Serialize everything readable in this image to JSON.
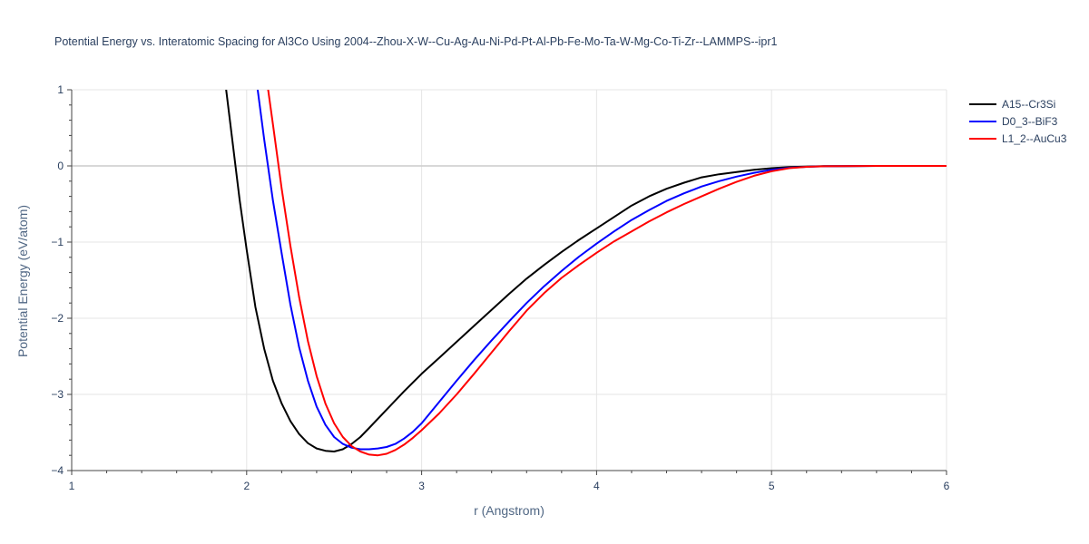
{
  "chart_data": {
    "type": "line",
    "title": "Potential Energy vs. Interatomic Spacing for Al3Co Using 2004--Zhou-X-W--Cu-Ag-Au-Ni-Pd-Pt-Al-Pb-Fe-Mo-Ta-W-Mg-Co-Ti-Zr--LAMMPS--ipr1",
    "xlabel": "r (Angstrom)",
    "ylabel": "Potential Energy (eV/atom)",
    "xlim": [
      1,
      6
    ],
    "ylim": [
      -4,
      1
    ],
    "xticks": [
      1,
      2,
      3,
      4,
      5,
      6
    ],
    "yticks": [
      -4,
      -3,
      -2,
      -1,
      0,
      1
    ],
    "ytick_labels": [
      "−4",
      "−3",
      "−2",
      "−1",
      "0",
      "1"
    ],
    "grid": true,
    "legend_position": "top-right",
    "series": [
      {
        "name": "A15--Cr3Si",
        "color": "#000000",
        "x": [
          1.88,
          1.92,
          1.96,
          2.0,
          2.05,
          2.1,
          2.15,
          2.2,
          2.25,
          2.3,
          2.35,
          2.4,
          2.45,
          2.5,
          2.55,
          2.6,
          2.65,
          2.7,
          2.8,
          2.9,
          3.0,
          3.1,
          3.2,
          3.3,
          3.4,
          3.5,
          3.6,
          3.7,
          3.8,
          3.9,
          4.0,
          4.1,
          4.2,
          4.3,
          4.4,
          4.5,
          4.6,
          4.7,
          4.8,
          4.9,
          5.0,
          5.1,
          5.2,
          5.3,
          5.4,
          5.5,
          5.6,
          5.8,
          6.0
        ],
        "y": [
          1.05,
          0.3,
          -0.45,
          -1.1,
          -1.85,
          -2.4,
          -2.82,
          -3.12,
          -3.35,
          -3.52,
          -3.64,
          -3.71,
          -3.74,
          -3.75,
          -3.72,
          -3.65,
          -3.56,
          -3.44,
          -3.2,
          -2.96,
          -2.73,
          -2.52,
          -2.31,
          -2.1,
          -1.89,
          -1.68,
          -1.48,
          -1.3,
          -1.13,
          -0.97,
          -0.82,
          -0.67,
          -0.52,
          -0.4,
          -0.3,
          -0.22,
          -0.15,
          -0.11,
          -0.08,
          -0.05,
          -0.03,
          -0.015,
          -0.008,
          -0.004,
          -0.002,
          -0.001,
          0.0,
          0.0,
          0.0
        ]
      },
      {
        "name": "D0_3--BiF3",
        "color": "#0000ff",
        "x": [
          2.06,
          2.1,
          2.15,
          2.2,
          2.25,
          2.3,
          2.35,
          2.4,
          2.45,
          2.5,
          2.55,
          2.6,
          2.65,
          2.7,
          2.75,
          2.8,
          2.85,
          2.9,
          2.95,
          3.0,
          3.1,
          3.2,
          3.3,
          3.4,
          3.5,
          3.6,
          3.7,
          3.8,
          3.9,
          4.0,
          4.1,
          4.2,
          4.3,
          4.4,
          4.5,
          4.6,
          4.7,
          4.8,
          4.9,
          5.0,
          5.1,
          5.2,
          5.3,
          5.4,
          5.5,
          5.6,
          5.8,
          6.0
        ],
        "y": [
          1.05,
          0.35,
          -0.45,
          -1.15,
          -1.82,
          -2.38,
          -2.82,
          -3.16,
          -3.4,
          -3.56,
          -3.65,
          -3.7,
          -3.72,
          -3.72,
          -3.71,
          -3.69,
          -3.65,
          -3.58,
          -3.49,
          -3.38,
          -3.1,
          -2.82,
          -2.55,
          -2.29,
          -2.04,
          -1.8,
          -1.58,
          -1.38,
          -1.19,
          -1.02,
          -0.86,
          -0.71,
          -0.58,
          -0.46,
          -0.36,
          -0.27,
          -0.2,
          -0.14,
          -0.09,
          -0.05,
          -0.025,
          -0.012,
          -0.005,
          -0.002,
          -0.001,
          0.0,
          0.0,
          0.0
        ]
      },
      {
        "name": "L1_2--AuCu3",
        "color": "#ff0000",
        "x": [
          2.12,
          2.15,
          2.2,
          2.25,
          2.3,
          2.35,
          2.4,
          2.45,
          2.5,
          2.55,
          2.6,
          2.65,
          2.7,
          2.75,
          2.8,
          2.85,
          2.9,
          2.95,
          3.0,
          3.1,
          3.2,
          3.3,
          3.4,
          3.5,
          3.6,
          3.7,
          3.8,
          3.9,
          4.0,
          4.1,
          4.2,
          4.3,
          4.4,
          4.5,
          4.6,
          4.7,
          4.8,
          4.9,
          5.0,
          5.1,
          5.2,
          5.3,
          5.4,
          5.5,
          5.6,
          5.8,
          6.0
        ],
        "y": [
          1.05,
          0.55,
          -0.3,
          -1.05,
          -1.72,
          -2.3,
          -2.76,
          -3.12,
          -3.38,
          -3.56,
          -3.68,
          -3.75,
          -3.79,
          -3.8,
          -3.78,
          -3.73,
          -3.66,
          -3.57,
          -3.47,
          -3.25,
          -3.0,
          -2.73,
          -2.45,
          -2.17,
          -1.9,
          -1.67,
          -1.47,
          -1.3,
          -1.14,
          -0.99,
          -0.86,
          -0.73,
          -0.61,
          -0.5,
          -0.4,
          -0.3,
          -0.21,
          -0.13,
          -0.07,
          -0.03,
          -0.012,
          -0.005,
          -0.002,
          -0.001,
          0.0,
          0.0,
          0.0
        ]
      }
    ]
  }
}
